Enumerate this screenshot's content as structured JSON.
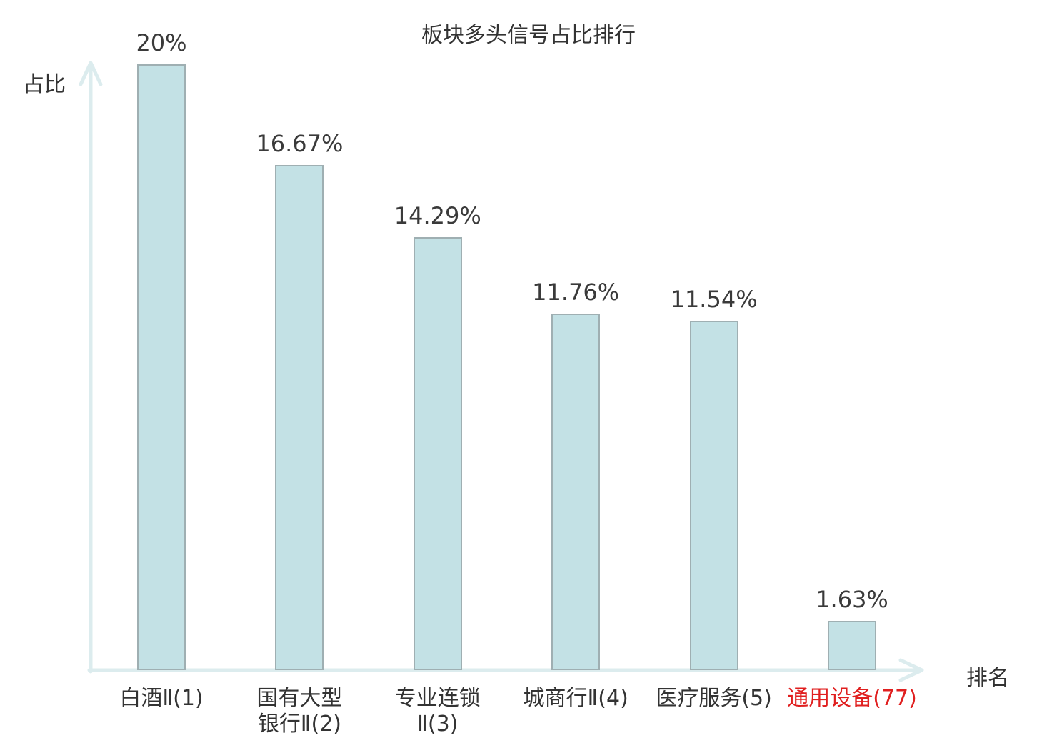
{
  "chart_data": {
    "type": "bar",
    "title": "板块多头信号占比排行",
    "ylabel": "占比",
    "xlabel": "排名",
    "categories": [
      "白酒Ⅱ(1)",
      "国有大型\n银行Ⅱ(2)",
      "专业连锁\nⅡ(3)",
      "城商行Ⅱ(4)",
      "医疗服务(5)",
      "通用设备(77)"
    ],
    "values": [
      20,
      16.67,
      14.29,
      11.76,
      11.54,
      1.63
    ],
    "value_labels": [
      "20%",
      "16.67%",
      "14.29%",
      "11.76%",
      "11.54%",
      "1.63%"
    ],
    "ylim": [
      0,
      20
    ],
    "grid": false,
    "legend": null,
    "highlight_index": 5,
    "category_label_colors": [
      "#333333",
      "#333333",
      "#333333",
      "#333333",
      "#333333",
      "#e01f1f"
    ],
    "colors": {
      "bar_fill": "#c3e1e5",
      "bar_border": "#9fafb2",
      "axis": "#dcecee",
      "text": "#3a3a3a",
      "highlight_text": "#e01f1f"
    }
  }
}
